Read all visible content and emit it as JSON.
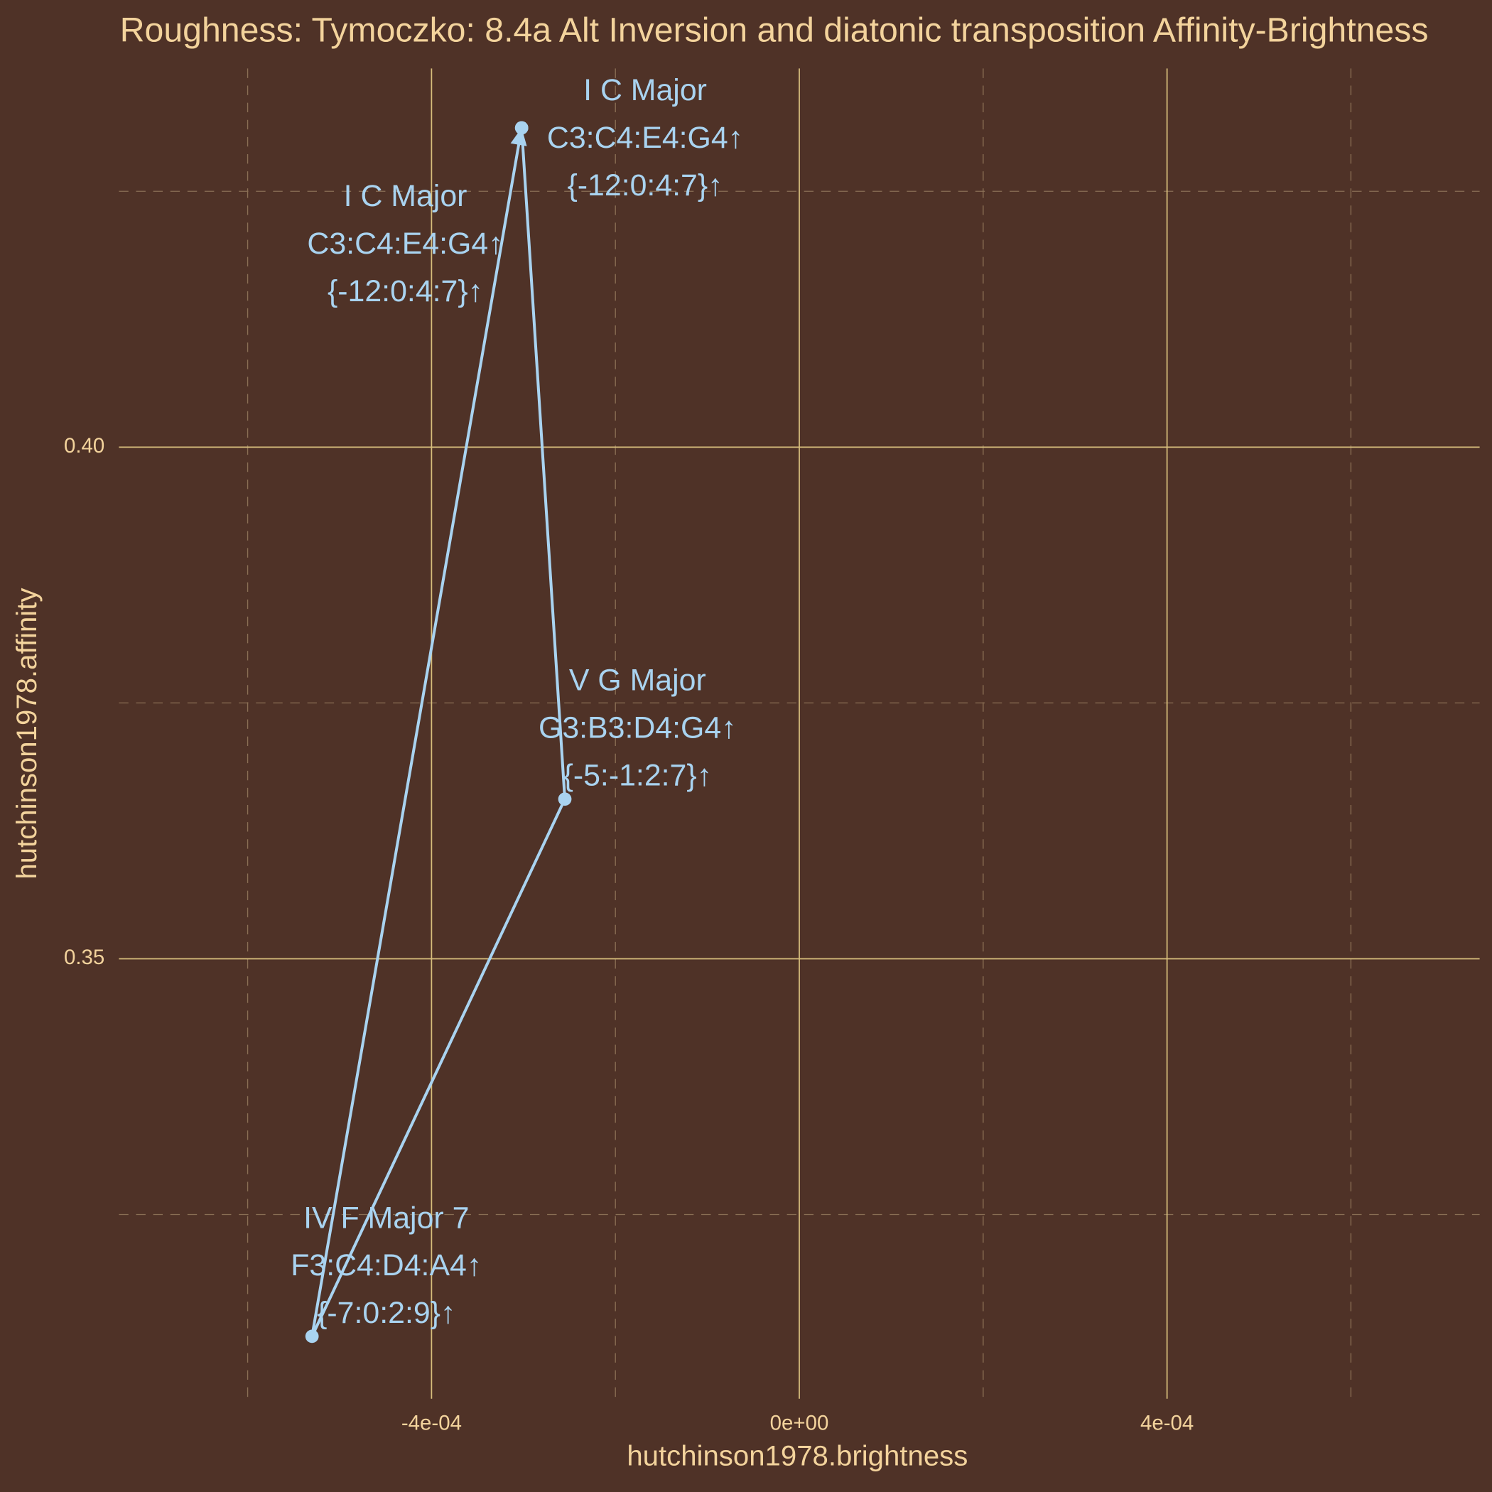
{
  "chart_data": {
    "type": "line",
    "title": "Roughness: Tymoczko: 8.4a Alt Inversion and diatonic transposition Affinity-Brightness",
    "x_label": "hutchinson1978.brightness",
    "y_label": "hutchinson1978.affinity",
    "series": [
      {
        "color": "#a9d3f0",
        "x": [
          -0.000302,
          -0.000255,
          -0.00053,
          -0.000302
        ],
        "values": [
          0.4312,
          0.3656,
          0.3131,
          0.4312
        ],
        "labels": [
          [
            "I C Major",
            "C3:C4:E4:G4↑",
            "{-12:0:4:7}↑"
          ],
          [
            "V G Major",
            "G3:B3:D4:G4↑",
            "{-5:-1:2:7}↑"
          ],
          [
            "IV F Major 7",
            "F3:C4:D4:A4↑",
            "{-7:0:2:9}↑"
          ],
          [
            "I C Major",
            "C3:C4:E4:G4↑",
            "{-12:0:4:7}↑"
          ]
        ]
      }
    ],
    "xlim": [
      -0.00074,
      0.00074
    ],
    "ylim": [
      0.307,
      0.437
    ],
    "xticks": [
      {
        "value": -0.0004,
        "label": "-4e-04"
      },
      {
        "value": 0,
        "label": "0e+00"
      },
      {
        "value": 0.0004,
        "label": "4e-04"
      }
    ],
    "yticks": [
      0.35,
      {
        "value": 0.4,
        "label": "0.40"
      }
    ],
    "x_minor_grid": [
      -0.0006,
      -0.0002,
      0.0002,
      0.0006
    ],
    "y_minor_grid": [
      0.325,
      0.375,
      0.425
    ],
    "grid": true
  }
}
